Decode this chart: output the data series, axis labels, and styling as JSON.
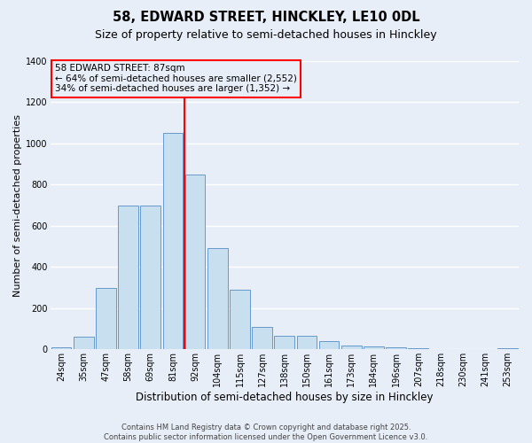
{
  "title": "58, EDWARD STREET, HINCKLEY, LE10 0DL",
  "subtitle": "Size of property relative to semi-detached houses in Hinckley",
  "xlabel": "Distribution of semi-detached houses by size in Hinckley",
  "ylabel": "Number of semi-detached properties",
  "footer": "Contains HM Land Registry data © Crown copyright and database right 2025.\nContains public sector information licensed under the Open Government Licence v3.0.",
  "bar_labels": [
    "24sqm",
    "35sqm",
    "47sqm",
    "58sqm",
    "69sqm",
    "81sqm",
    "92sqm",
    "104sqm",
    "115sqm",
    "127sqm",
    "138sqm",
    "150sqm",
    "161sqm",
    "173sqm",
    "184sqm",
    "196sqm",
    "207sqm",
    "218sqm",
    "230sqm",
    "241sqm",
    "253sqm"
  ],
  "bar_values": [
    10,
    60,
    300,
    700,
    700,
    1050,
    850,
    490,
    290,
    110,
    65,
    65,
    40,
    20,
    15,
    10,
    5,
    3,
    2,
    1,
    5
  ],
  "bar_color": "#c8dff0",
  "bar_edge_color": "#6699cc",
  "vline_x_index": 6,
  "vline_color": "red",
  "annotation_title": "58 EDWARD STREET: 87sqm",
  "annotation_line1": "← 64% of semi-detached houses are smaller (2,552)",
  "annotation_line2": "34% of semi-detached houses are larger (1,352) →",
  "annotation_box_color": "red",
  "ylim": [
    0,
    1400
  ],
  "background_color": "#e8eef8",
  "grid_color": "white",
  "title_fontsize": 10.5,
  "subtitle_fontsize": 9,
  "xlabel_fontsize": 8.5,
  "ylabel_fontsize": 8,
  "tick_fontsize": 7,
  "annotation_fontsize": 7.5,
  "footer_fontsize": 6
}
